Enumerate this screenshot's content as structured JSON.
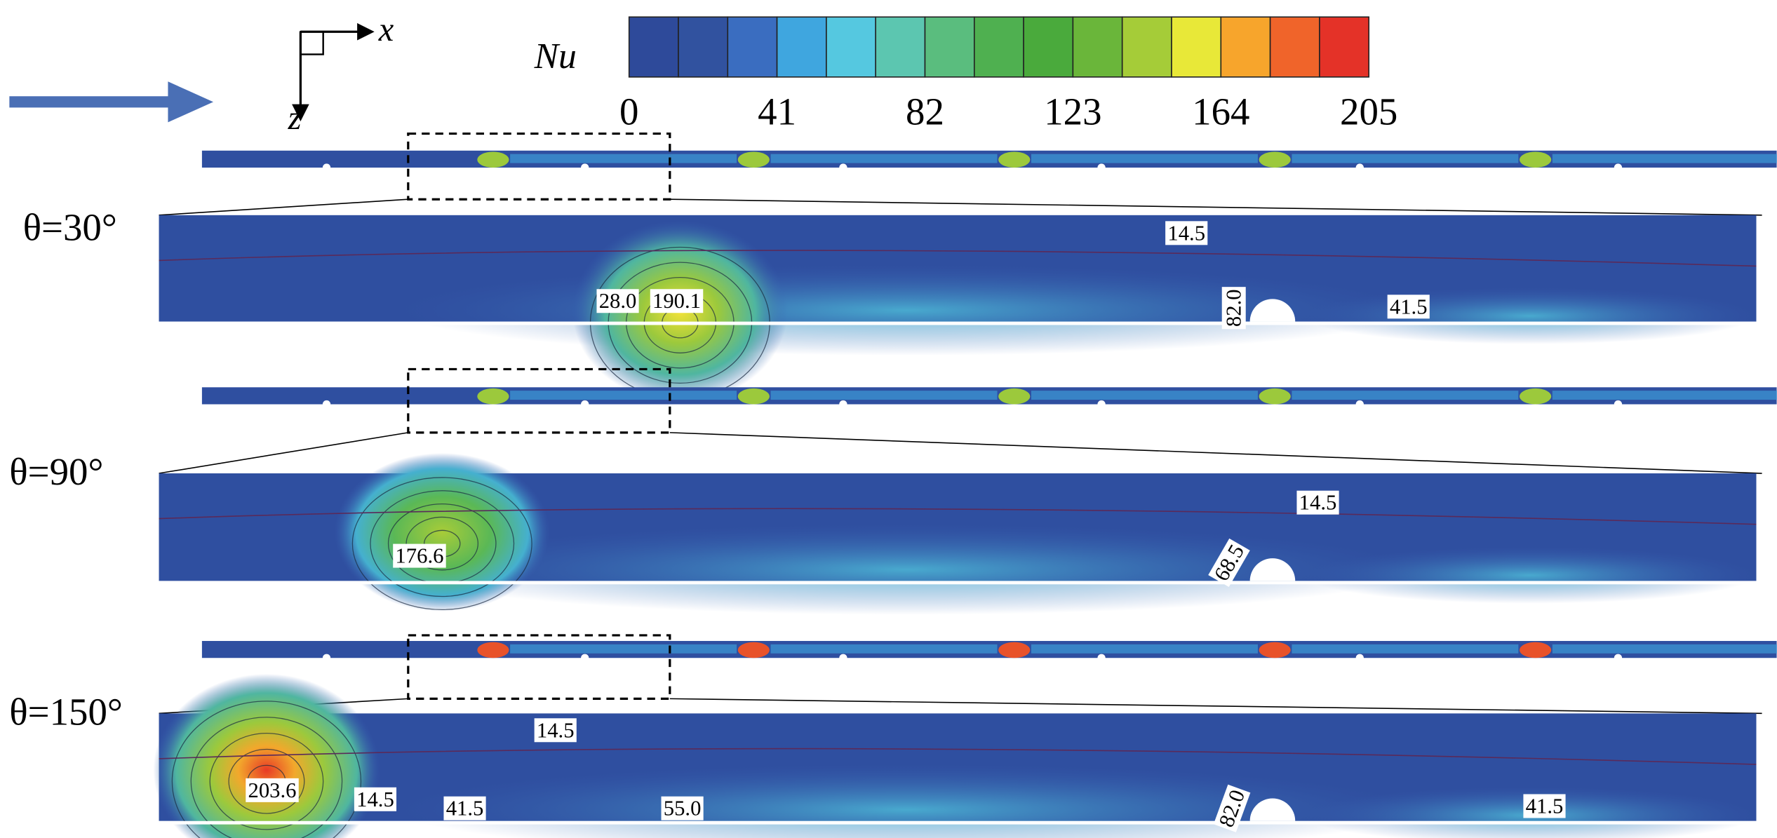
{
  "axes": {
    "x": "x",
    "z": "z"
  },
  "colorbar": {
    "label": "Nu",
    "ticks": [
      "0",
      "41",
      "82",
      "123",
      "164",
      "205"
    ]
  },
  "panels": [
    {
      "label": "θ=30°",
      "contour_labels": [
        "14.5",
        "28.0",
        "190.1",
        "82.0",
        "41.5"
      ]
    },
    {
      "label": "θ=90°",
      "contour_labels": [
        "14.5",
        "176.6",
        "68.5"
      ]
    },
    {
      "label": "θ=150°",
      "contour_labels": [
        "14.5",
        "203.6",
        "14.5",
        "41.5",
        "55.0",
        "82.0",
        "41.5"
      ]
    }
  ]
}
